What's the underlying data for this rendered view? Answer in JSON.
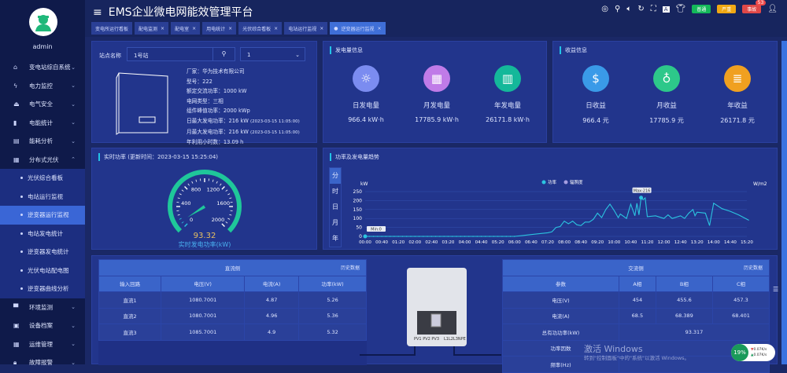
{
  "user": {
    "name": "admin"
  },
  "sidebar": {
    "items": [
      {
        "label": "变电站综自系统",
        "icon": "home-icon"
      },
      {
        "label": "电力监控",
        "icon": "bolt-icon"
      },
      {
        "label": "电气安全",
        "icon": "alarm-icon"
      },
      {
        "label": "电能统计",
        "icon": "bar-chart-icon"
      },
      {
        "label": "能耗分析",
        "icon": "analysis-icon"
      },
      {
        "label": "分布式光伏",
        "icon": "solar-panel-icon",
        "expanded": true,
        "children": [
          "光伏综合看板",
          "电站运行监视",
          "逆变器运行监视",
          "电站发电统计",
          "逆变器发电统计",
          "光伏电站配电图",
          "逆变器曲线分析"
        ],
        "active_child": "逆变器运行监视"
      },
      {
        "label": "环境监测",
        "icon": "camera-icon"
      },
      {
        "label": "设备档案",
        "icon": "archive-icon"
      },
      {
        "label": "运维管理",
        "icon": "calendar-icon"
      },
      {
        "label": "故障报警",
        "icon": "lock-icon"
      }
    ]
  },
  "header": {
    "title": "EMS企业微电网能效管理平台",
    "badges": [
      {
        "label": "普通",
        "color": "#14b85a"
      },
      {
        "label": "严重",
        "color": "#f0a814"
      },
      {
        "label": "事故",
        "color": "#e04848",
        "count": "53"
      }
    ]
  },
  "tabs": [
    {
      "label": "变电所运行看板",
      "closable": false
    },
    {
      "label": "配电监测"
    },
    {
      "label": "配电室"
    },
    {
      "label": "用电统计"
    },
    {
      "label": "光伏综合看板"
    },
    {
      "label": "电站运行监视"
    },
    {
      "label": "逆变器运行监视",
      "active": true
    }
  ],
  "station": {
    "label": "站点名称",
    "value": "1号站",
    "select": "1",
    "info": [
      {
        "k": "厂家：",
        "v": "华为技术有限公司"
      },
      {
        "k": "型号：",
        "v": "222"
      },
      {
        "k": "额定交流功率：",
        "v": "1000 kW"
      },
      {
        "k": "电网类型：",
        "v": "三相"
      },
      {
        "k": "组件峰值功率：",
        "v": "2000 kWp"
      },
      {
        "k": "日最大发电功率：",
        "v": "216 kW",
        "t": "(2023-03-15 11:05:00)"
      },
      {
        "k": "月最大发电功率：",
        "v": "216 kW",
        "t": "(2023-03-15 11:05:00)"
      },
      {
        "k": "年利用小时数：",
        "v": "13.09 h"
      }
    ]
  },
  "generation": {
    "title": "发电量信息",
    "items": [
      {
        "label": "日发电量",
        "value": "966.4 kW·h",
        "icon": "sun-icon",
        "color": "#7b8cf0"
      },
      {
        "label": "月发电量",
        "value": "17785.9 kW·h",
        "icon": "calendar-icon",
        "color": "#c07be8"
      },
      {
        "label": "年发电量",
        "value": "26171.8 kW·h",
        "icon": "calendar-chart-icon",
        "color": "#14b89a"
      }
    ]
  },
  "revenue": {
    "title": "收益信息",
    "items": [
      {
        "label": "日收益",
        "value": "966.4 元",
        "icon": "coin-hand-icon",
        "color": "#3a9ae8"
      },
      {
        "label": "月收益",
        "value": "17785.9 元",
        "icon": "money-bag-icon",
        "color": "#2dc88a"
      },
      {
        "label": "年收益",
        "value": "26171.8 元",
        "icon": "coins-icon",
        "color": "#f0a020"
      }
    ]
  },
  "gauge": {
    "title": "实时功率 (更新时间：2023-03-15 15:25:04)",
    "min": 0,
    "max": 2000,
    "ticks": [
      "0",
      "400",
      "800",
      "1200",
      "1600",
      "2000"
    ],
    "value": 93.32,
    "value_text": "93.32",
    "label": "实时发电功率(kW)"
  },
  "trend": {
    "title": "功率及发电量趋势",
    "modes": [
      "分",
      "时",
      "日",
      "月",
      "年"
    ],
    "active_mode": "分"
  },
  "chart_data": {
    "type": "line",
    "ylabel": "kW",
    "y2label": "W/m2",
    "ylim": [
      0,
      250
    ],
    "yticks": [
      0,
      50,
      100,
      150,
      200,
      250
    ],
    "legend": [
      "功率",
      "辐照度"
    ],
    "legend_placement": "top",
    "xticks": [
      "00:00",
      "00:40",
      "01:20",
      "02:00",
      "02:40",
      "03:20",
      "04:00",
      "04:40",
      "05:20",
      "06:00",
      "06:40",
      "07:20",
      "08:00",
      "08:40",
      "09:20",
      "10:00",
      "10:40",
      "11:20",
      "12:00",
      "12:40",
      "13:20",
      "14:00",
      "14:40",
      "15:20"
    ],
    "series": [
      {
        "name": "功率",
        "color": "#2bc4e0",
        "points": [
          [
            "00:00",
            0
          ],
          [
            "06:00",
            0
          ],
          [
            "06:20",
            5
          ],
          [
            "06:40",
            10
          ],
          [
            "07:00",
            15
          ],
          [
            "07:20",
            20
          ],
          [
            "07:30",
            25
          ],
          [
            "07:40",
            50
          ],
          [
            "07:50",
            55
          ],
          [
            "08:00",
            85
          ],
          [
            "08:10",
            70
          ],
          [
            "08:20",
            85
          ],
          [
            "08:30",
            65
          ],
          [
            "08:40",
            60
          ],
          [
            "08:50",
            80
          ],
          [
            "09:00",
            80
          ],
          [
            "09:10",
            95
          ],
          [
            "09:20",
            130
          ],
          [
            "09:30",
            105
          ],
          [
            "09:40",
            150
          ],
          [
            "09:50",
            180
          ],
          [
            "10:00",
            145
          ],
          [
            "10:10",
            105
          ],
          [
            "10:15",
            125
          ],
          [
            "10:30",
            100
          ],
          [
            "10:40",
            180
          ],
          [
            "10:50",
            115
          ],
          [
            "10:55",
            185
          ],
          [
            "11:00",
            120
          ],
          [
            "11:05",
            216
          ],
          [
            "11:10",
            205
          ],
          [
            "11:15",
            215
          ],
          [
            "11:20",
            110
          ],
          [
            "11:40",
            115
          ],
          [
            "12:00",
            100
          ],
          [
            "12:10",
            120
          ],
          [
            "12:20",
            100
          ],
          [
            "12:40",
            115
          ],
          [
            "12:50",
            100
          ],
          [
            "13:00",
            130
          ],
          [
            "13:10",
            150
          ],
          [
            "13:15",
            115
          ],
          [
            "13:20",
            135
          ],
          [
            "13:40",
            130
          ],
          [
            "13:50",
            60
          ],
          [
            "14:00",
            185
          ],
          [
            "14:20",
            155
          ],
          [
            "14:40",
            140
          ],
          [
            "15:00",
            120
          ],
          [
            "15:25",
            90
          ]
        ]
      }
    ],
    "annotations": [
      {
        "x": "00:00",
        "y": 0,
        "label": "Min:0"
      },
      {
        "x": "11:05",
        "y": 216,
        "label": "Max:216"
      }
    ]
  },
  "dc": {
    "title": "直流侧",
    "history": "历史数据",
    "headers": [
      "输入回路",
      "电压(V)",
      "电流(A)",
      "功率(kW)"
    ],
    "rows": [
      [
        "直流1",
        "1080.7001",
        "4.87",
        "5.26"
      ],
      [
        "直流2",
        "1080.7001",
        "4.96",
        "5.36"
      ],
      [
        "直流3",
        "1085.7001",
        "4.9",
        "5.32"
      ]
    ]
  },
  "ac": {
    "title": "交流侧",
    "history": "历史数据",
    "headers": [
      "参数",
      "A相",
      "B相",
      "C相"
    ],
    "rows": [
      [
        "电压(V)",
        "454",
        "455.6",
        "457.3"
      ],
      [
        "电流(A)",
        "68.5",
        "68.389",
        "68.401"
      ]
    ],
    "total_power": {
      "label": "总有功功率(kW)",
      "value": "93.317"
    },
    "power_factor": {
      "label": "功率因数",
      "value": ""
    },
    "frequency": {
      "label": "频率(Hz)",
      "value": ""
    }
  },
  "inverter": {
    "pv_labels": "PV1 PV2 PV3",
    "ac_labels": "L1L2L3NPE"
  },
  "watermark": {
    "line1": "激活 Windows",
    "line2": "转到\"控制面板\"中的\"系统\"以激活 Windows。"
  },
  "netmon": {
    "percent": "19%",
    "up": "0.07K/s",
    "down": "0.07K/s"
  }
}
